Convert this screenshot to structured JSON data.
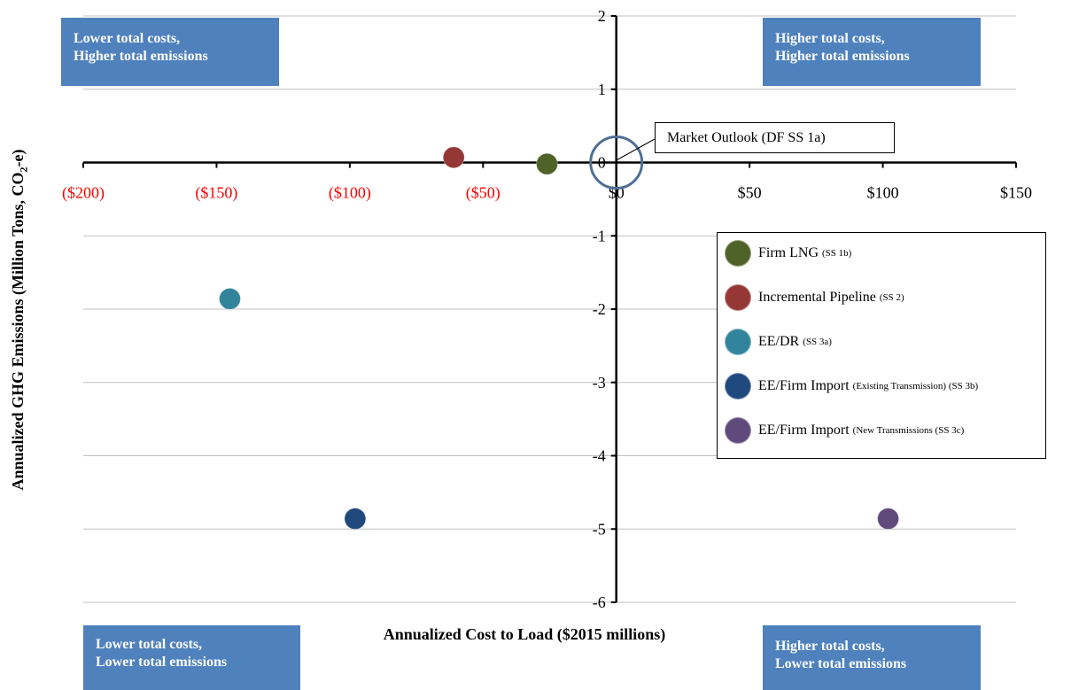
{
  "quadrants": {
    "top_left": [
      "Lower total costs,",
      "Higher total emissions"
    ],
    "top_right": [
      "Higher total costs,",
      "Higher total emissions"
    ],
    "bottom_left": [
      "Lower total costs,",
      "Lower total emissions"
    ],
    "bottom_right": [
      "Higher total costs,",
      "Lower total emissions"
    ]
  },
  "callout": "Market Outlook (DF SS 1a)",
  "chart_data": {
    "type": "scatter",
    "xlabel": "Annualized Cost to Load ($2015 millions)",
    "ylabel_parts": [
      "Annualized GHG Emissions (Million Tons, CO",
      "2",
      "-e)"
    ],
    "xlim": [
      -200,
      150
    ],
    "ylim": [
      -6,
      2
    ],
    "x_ticks": [
      {
        "value": -200,
        "label": "($200)",
        "color": "#ff0000"
      },
      {
        "value": -150,
        "label": "($150)",
        "color": "#ff0000"
      },
      {
        "value": -100,
        "label": "($100)",
        "color": "#ff0000"
      },
      {
        "value": -50,
        "label": "($50)",
        "color": "#ff0000"
      },
      {
        "value": 0,
        "label": "$0",
        "color": "#000000"
      },
      {
        "value": 50,
        "label": "$50",
        "color": "#000000"
      },
      {
        "value": 100,
        "label": "$100",
        "color": "#000000"
      },
      {
        "value": 150,
        "label": "$150",
        "color": "#000000"
      }
    ],
    "y_ticks": [
      {
        "value": 2,
        "label": "2"
      },
      {
        "value": 1,
        "label": "1"
      },
      {
        "value": 0,
        "label": "0"
      },
      {
        "value": -1,
        "label": "-1"
      },
      {
        "value": -2,
        "label": "-2"
      },
      {
        "value": -3,
        "label": "-3"
      },
      {
        "value": -4,
        "label": "-4"
      },
      {
        "value": -5,
        "label": "-5"
      },
      {
        "value": -6,
        "label": "-6"
      }
    ],
    "grid": true,
    "legend_position": "right",
    "baseline": {
      "name": "Market Outlook (DF SS 1a)",
      "x": 0,
      "y": 0
    },
    "series": [
      {
        "name": "Firm LNG",
        "sub": "(SS 1b)",
        "x": -26,
        "y": -0.02,
        "color": "#4f6228"
      },
      {
        "name": "Incremental Pipeline",
        "sub": "(SS 2)",
        "x": -61,
        "y": 0.07,
        "color": "#953735"
      },
      {
        "name": "EE/DR",
        "sub": "(SS 3a)",
        "x": -145,
        "y": -1.86,
        "color": "#31849b"
      },
      {
        "name": "EE/Firm Import",
        "sub": "(Existing Transmission) (SS 3b)",
        "x": -98,
        "y": -4.86,
        "color": "#1f497d"
      },
      {
        "name": "EE/Firm Import",
        "sub": "(New Transmissions (SS 3c)",
        "x": 102,
        "y": -4.86,
        "color": "#604a7b"
      }
    ]
  }
}
